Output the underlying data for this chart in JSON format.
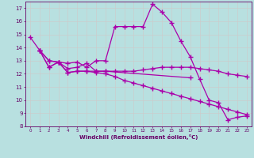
{
  "xlabel": "Windchill (Refroidissement éolien,°C)",
  "bg_color": "#b8e0e0",
  "line_color": "#aa00aa",
  "grid_color": "#cccccc",
  "xlim": [
    -0.5,
    23.5
  ],
  "ylim": [
    8,
    17.5
  ],
  "yticks": [
    8,
    9,
    10,
    11,
    12,
    13,
    14,
    15,
    16,
    17
  ],
  "xticks": [
    0,
    1,
    2,
    3,
    4,
    5,
    6,
    7,
    8,
    9,
    10,
    11,
    12,
    13,
    14,
    15,
    16,
    17,
    18,
    19,
    20,
    21,
    22,
    23
  ],
  "line1_x": [
    0,
    1,
    2,
    3,
    4,
    5,
    6,
    7,
    8,
    9,
    10,
    11,
    12,
    13,
    14,
    15,
    16,
    17,
    18,
    19,
    20,
    21,
    22,
    23
  ],
  "line1_y": [
    14.8,
    13.8,
    13.0,
    12.9,
    12.8,
    12.9,
    12.5,
    13.0,
    13.0,
    15.6,
    15.6,
    15.6,
    15.6,
    17.3,
    16.7,
    15.9,
    14.5,
    13.3,
    11.6,
    10.0,
    9.8,
    8.5,
    8.7,
    8.8
  ],
  "line2_x": [
    1,
    2,
    3,
    4,
    5,
    6,
    7,
    8,
    17
  ],
  "line2_y": [
    13.8,
    13.0,
    12.9,
    12.4,
    12.5,
    12.8,
    12.2,
    12.2,
    11.7
  ],
  "line3_x": [
    1,
    2,
    3,
    4,
    5,
    6,
    7,
    8,
    9,
    10,
    11,
    12,
    13,
    14,
    15,
    16,
    17,
    18,
    19,
    20,
    21,
    22,
    23
  ],
  "line3_y": [
    13.8,
    12.5,
    12.9,
    12.1,
    12.2,
    12.2,
    12.2,
    12.2,
    12.2,
    12.2,
    12.2,
    12.3,
    12.4,
    12.5,
    12.5,
    12.5,
    12.5,
    12.4,
    12.3,
    12.2,
    12.0,
    11.9,
    11.8
  ],
  "line4_x": [
    1,
    2,
    3,
    4,
    5,
    6,
    7,
    8,
    9,
    10,
    11,
    12,
    13,
    14,
    15,
    16,
    17,
    18,
    19,
    20,
    21,
    22,
    23
  ],
  "line4_y": [
    13.8,
    12.5,
    12.9,
    12.1,
    12.2,
    12.2,
    12.1,
    12.0,
    11.8,
    11.5,
    11.3,
    11.1,
    10.9,
    10.7,
    10.5,
    10.3,
    10.1,
    9.9,
    9.7,
    9.5,
    9.3,
    9.1,
    8.9
  ]
}
